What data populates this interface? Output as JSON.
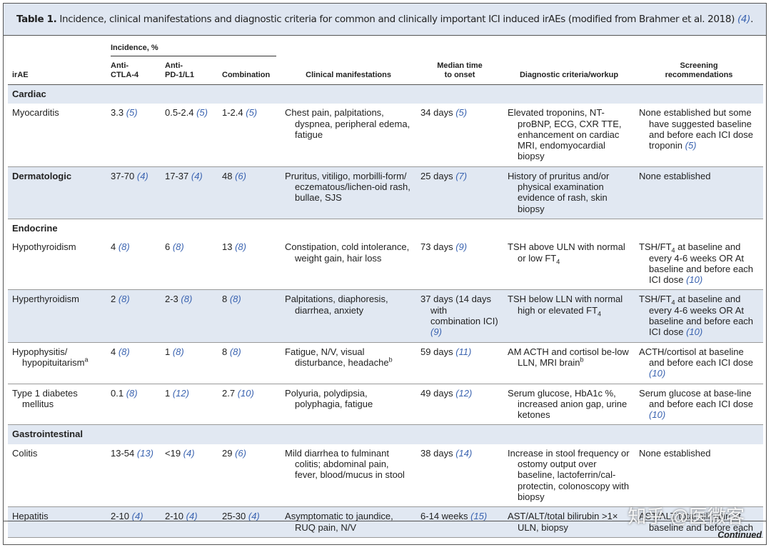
{
  "title": {
    "label": "Table 1.",
    "text": " Incidence, clinical manifestations and diagnostic criteria for common and clinically important ICI induced irAEs (modified from Brahmer et al. 2018) ",
    "ref": "(4)",
    "end": "."
  },
  "header": {
    "group": "Incidence, %",
    "columns": [
      "irAE",
      "Anti-\nCTLA-4",
      "Anti-\nPD-1/L1",
      "Combination",
      "Clinical manifestations",
      "Median time\nto onset",
      "Diagnostic criteria/workup",
      "Screening\nrecommendations"
    ]
  },
  "rows": [
    {
      "section": "Cardiac"
    },
    {
      "cells": [
        [
          "Myocarditis"
        ],
        [
          "3.3 ",
          {
            "ref": "(5)"
          }
        ],
        [
          "0.5-2.4 ",
          {
            "ref": "(5)"
          }
        ],
        [
          "1-2.4 ",
          {
            "ref": "(5)"
          }
        ],
        [
          "Chest pain, palpitations, dyspnea, peripheral edema, fatigue"
        ],
        [
          "34 days ",
          {
            "ref": "(5)"
          }
        ],
        [
          "Elevated troponins, NT-proBNP, ECG, CXR TTE, enhancement on cardiac MRI, endomyocardial biopsy"
        ],
        [
          "None established but some have suggested baseline and before each ICI dose troponin ",
          {
            "ref": "(5)"
          }
        ]
      ]
    },
    {
      "section": "Dermatologic",
      "cells": [
        [
          "37-70 ",
          {
            "ref": "(4)"
          }
        ],
        [
          "17-37 ",
          {
            "ref": "(4)"
          }
        ],
        [
          "48 ",
          {
            "ref": "(6)"
          }
        ],
        [
          "Pruritus, vitiligo, morbilli-form/ eczematous/lichen-oid rash, bullae, SJS"
        ],
        [
          "25 days ",
          {
            "ref": "(7)"
          }
        ],
        [
          "History of pruritus and/or physical examination evidence of rash, skin biopsy"
        ],
        [
          "None established"
        ]
      ]
    },
    {
      "section": "Endocrine"
    },
    {
      "cells": [
        [
          "Hypothyroidism"
        ],
        [
          "4 ",
          {
            "ref": "(8)"
          }
        ],
        [
          "6 ",
          {
            "ref": "(8)"
          }
        ],
        [
          "13 ",
          {
            "ref": "(8)"
          }
        ],
        [
          "Constipation, cold intolerance, weight gain, hair loss"
        ],
        [
          "73 days ",
          {
            "ref": "(9)"
          }
        ],
        [
          "TSH above ULN with normal or low FT",
          {
            "sub": "4"
          }
        ],
        [
          "TSH/FT",
          {
            "sub": "4"
          },
          " at baseline and every 4-6 weeks OR At baseline and before each ICI dose ",
          {
            "ref": "(10)"
          }
        ]
      ]
    },
    {
      "cells": [
        [
          "Hyperthyroidism"
        ],
        [
          "2 ",
          {
            "ref": "(8)"
          }
        ],
        [
          "2-3 ",
          {
            "ref": "(8)"
          }
        ],
        [
          "8 ",
          {
            "ref": "(8)"
          }
        ],
        [
          "Palpitations, diaphoresis, diarrhea, anxiety"
        ],
        [
          "37 days (14 days with combination ICI) ",
          {
            "ref": "(9)"
          }
        ],
        [
          "TSH below LLN with normal high or elevated FT",
          {
            "sub": "4"
          }
        ],
        [
          "TSH/FT",
          {
            "sub": "4"
          },
          " at baseline and every 4-6 weeks OR At baseline and before each ICI dose ",
          {
            "ref": "(10)"
          }
        ]
      ]
    },
    {
      "cells": [
        [
          "Hypophysitis/ hypopituitarism",
          {
            "sup": "a"
          }
        ],
        [
          "4 ",
          {
            "ref": "(8)"
          }
        ],
        [
          "1 ",
          {
            "ref": "(8)"
          }
        ],
        [
          "8 ",
          {
            "ref": "(8)"
          }
        ],
        [
          "Fatigue, N/V, visual disturbance, headache",
          {
            "sup": "b"
          }
        ],
        [
          "59 days ",
          {
            "ref": "(11)"
          }
        ],
        [
          "AM ACTH and cortisol be-low LLN, MRI brain",
          {
            "sup": "b"
          }
        ],
        [
          "ACTH/cortisol at baseline and before each ICI dose ",
          {
            "ref": "(10)"
          }
        ]
      ]
    },
    {
      "cells": [
        [
          "Type 1 diabetes mellitus"
        ],
        [
          "0.1 ",
          {
            "ref": "(8)"
          }
        ],
        [
          "1 ",
          {
            "ref": "(12)"
          }
        ],
        [
          "2.7 ",
          {
            "ref": "(10)"
          }
        ],
        [
          "Polyuria, polydipsia, polyphagia, fatigue"
        ],
        [
          "49 days ",
          {
            "ref": "(12)"
          }
        ],
        [
          "Serum glucose, HbA1c %, increased anion gap, urine ketones"
        ],
        [
          "Serum glucose at base-line and before each ICI dose ",
          {
            "ref": "(10)"
          }
        ]
      ]
    },
    {
      "section": "Gastrointestinal"
    },
    {
      "cells": [
        [
          "Colitis"
        ],
        [
          "13-54 ",
          {
            "ref": "(13)"
          }
        ],
        [
          "<19 ",
          {
            "ref": "(4)"
          }
        ],
        [
          "29 ",
          {
            "ref": "(6)"
          }
        ],
        [
          "Mild diarrhea to fulminant colitis; abdominal pain, fever, blood/mucus in stool"
        ],
        [
          "38 days ",
          {
            "ref": "(14)"
          }
        ],
        [
          "Increase in stool frequency or ostomy output over baseline, lactoferrin/cal-protectin, colonoscopy with biopsy"
        ],
        [
          "None established"
        ]
      ]
    },
    {
      "cells": [
        [
          "Hepatitis"
        ],
        [
          "2-10 ",
          {
            "ref": "(4)"
          }
        ],
        [
          "2-10 ",
          {
            "ref": "(4)"
          }
        ],
        [
          "25-30 ",
          {
            "ref": "(4)"
          }
        ],
        [
          "Asymptomatic to jaundice, RUQ pain, N/V"
        ],
        [
          "6-14 weeks ",
          {
            "ref": "(15)"
          }
        ],
        [
          "AST/ALT/total bilirubin >1× ULN, biopsy"
        ],
        [
          "AST/ALT/total bilirubin at baseline and before each"
        ]
      ]
    }
  ],
  "footer": "Continued",
  "watermark": "知乎 @医微客"
}
